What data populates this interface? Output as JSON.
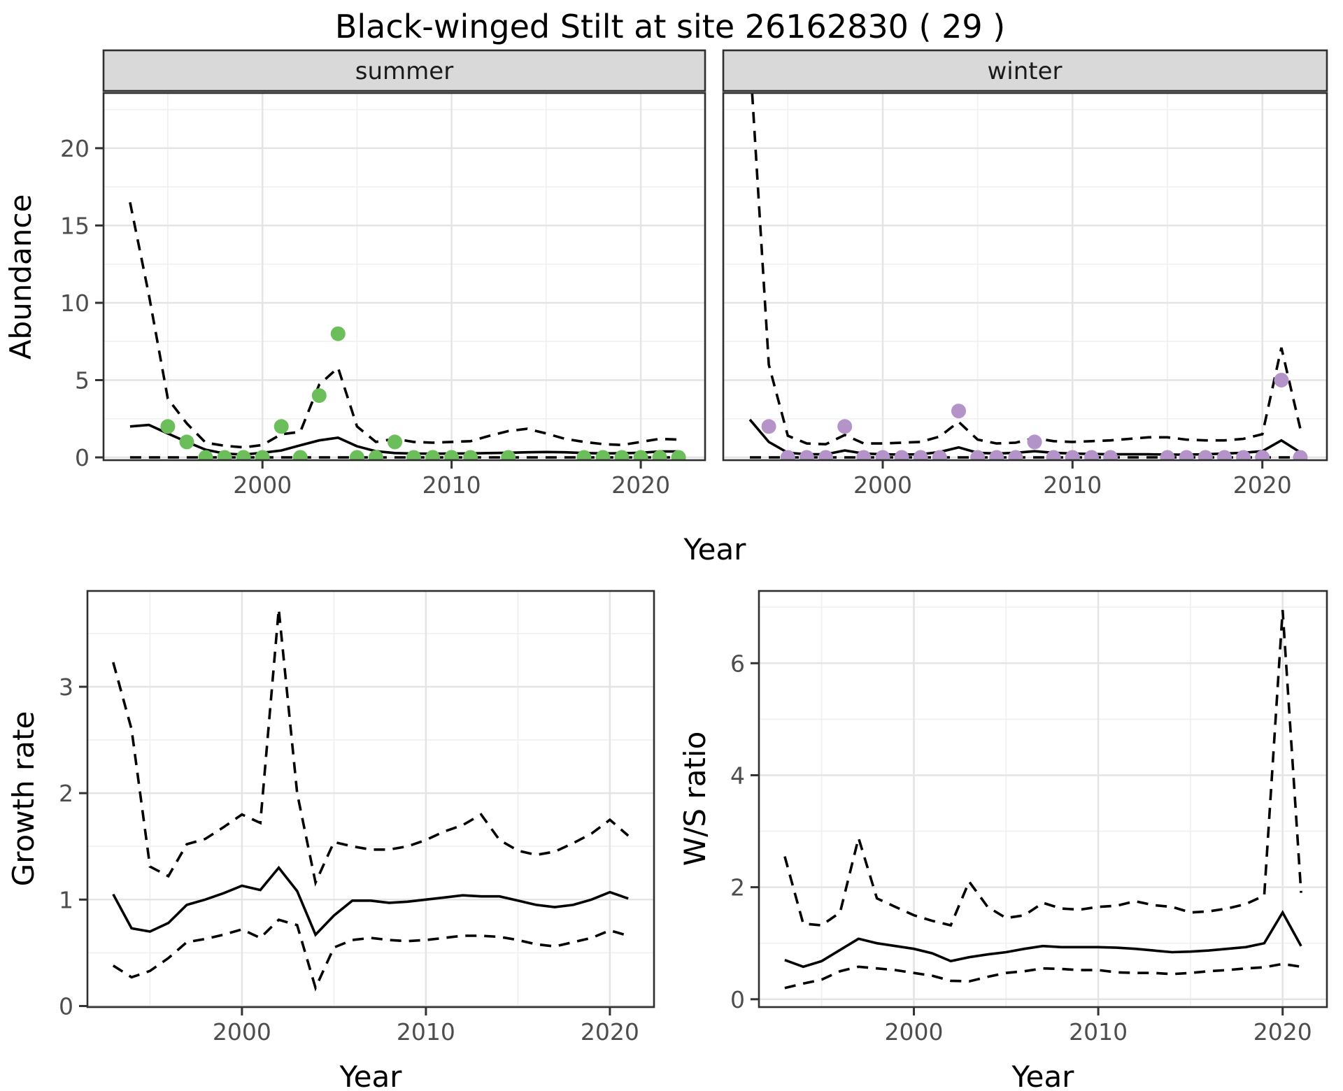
{
  "title": "Black-winged Stilt at site 26162830 ( 29 )",
  "facets": [
    {
      "label": "summer"
    },
    {
      "label": "winter"
    }
  ],
  "axis": {
    "x_label": "Year",
    "abundance_label": "Abundance",
    "growth_label": "Growth rate",
    "ws_label": "W/S ratio"
  },
  "colors": {
    "summer_point": "#6cbe5a",
    "winter_point": "#b493c8",
    "line": "#000000",
    "strip_bg": "#d9d9d9",
    "grid_major": "#e4e4e4",
    "grid_minor": "#f0f0f0",
    "axis_text": "#4d4d4d",
    "panel_border": "#2f2f2f"
  },
  "chart_data": [
    {
      "id": "abundance-summer",
      "type": "line",
      "facet": "summer",
      "xlabel": "Year",
      "ylabel": "Abundance",
      "x": [
        1993,
        1994,
        1995,
        1996,
        1997,
        1998,
        1999,
        2000,
        2001,
        2002,
        2003,
        2004,
        2005,
        2006,
        2007,
        2008,
        2009,
        2010,
        2011,
        2012,
        2013,
        2014,
        2015,
        2016,
        2017,
        2018,
        2019,
        2020,
        2021,
        2022
      ],
      "series": [
        {
          "name": "mean",
          "style": "solid",
          "values": [
            2.0,
            2.1,
            1.55,
            1.0,
            0.5,
            0.25,
            0.18,
            0.3,
            0.45,
            0.78,
            1.1,
            1.27,
            0.72,
            0.4,
            0.28,
            0.25,
            0.24,
            0.25,
            0.26,
            0.28,
            0.3,
            0.33,
            0.35,
            0.33,
            0.28,
            0.26,
            0.27,
            0.3,
            0.38,
            0.38
          ]
        },
        {
          "name": "upper-ci",
          "style": "dashed",
          "values": [
            16.5,
            10.5,
            3.8,
            2.2,
            0.95,
            0.75,
            0.65,
            0.8,
            1.5,
            1.65,
            4.7,
            5.8,
            2.0,
            1.0,
            1.2,
            1.0,
            0.95,
            1.0,
            1.05,
            1.4,
            1.7,
            1.85,
            1.55,
            1.2,
            1.0,
            0.86,
            0.8,
            1.0,
            1.2,
            1.15
          ]
        },
        {
          "name": "lower-ci",
          "style": "dashed",
          "values": [
            0,
            0,
            0,
            0,
            0,
            0,
            0,
            0,
            0,
            0,
            0,
            0,
            0,
            0,
            0,
            0,
            0,
            0,
            0,
            0,
            0,
            0,
            0,
            0,
            0,
            0,
            0,
            0,
            0,
            0
          ]
        }
      ],
      "points": {
        "name": "observed-counts",
        "color_key": "summer_point",
        "xy": [
          [
            1995,
            2
          ],
          [
            1996,
            1
          ],
          [
            1997,
            0
          ],
          [
            1998,
            0
          ],
          [
            1999,
            0
          ],
          [
            2000,
            0
          ],
          [
            2001,
            2
          ],
          [
            2002,
            0
          ],
          [
            2003,
            4
          ],
          [
            2004,
            8
          ],
          [
            2005,
            0
          ],
          [
            2006,
            0
          ],
          [
            2007,
            1
          ],
          [
            2008,
            0
          ],
          [
            2009,
            0
          ],
          [
            2010,
            0
          ],
          [
            2011,
            0
          ],
          [
            2013,
            0
          ],
          [
            2017,
            0
          ],
          [
            2018,
            0
          ],
          [
            2019,
            0
          ],
          [
            2020,
            0
          ],
          [
            2021,
            0
          ],
          [
            2022,
            0
          ]
        ]
      },
      "xlim": [
        1991.6,
        2023.4
      ],
      "ylim": [
        -0.18,
        23.57
      ],
      "xticks": {
        "values": [
          2000,
          2010,
          2020
        ],
        "labels": [
          "2000",
          "2010",
          "2020"
        ]
      },
      "xminor": [
        1995,
        2005,
        2015
      ],
      "yticks": {
        "values": [
          0,
          5,
          10,
          15,
          20
        ],
        "labels": [
          "0",
          "5",
          "10",
          "15",
          "20"
        ]
      },
      "yminor": [
        2.5,
        7.5,
        12.5,
        17.5,
        22.5
      ],
      "y_labels_visible": true
    },
    {
      "id": "abundance-winter",
      "type": "line",
      "facet": "winter",
      "xlabel": "Year",
      "ylabel": "Abundance",
      "x": [
        1993,
        1994,
        1995,
        1996,
        1997,
        1998,
        1999,
        2000,
        2001,
        2002,
        2003,
        2004,
        2005,
        2006,
        2007,
        2008,
        2009,
        2010,
        2011,
        2012,
        2013,
        2014,
        2015,
        2016,
        2017,
        2018,
        2019,
        2020,
        2021,
        2022
      ],
      "series": [
        {
          "name": "mean",
          "style": "solid",
          "values": [
            2.45,
            1.0,
            0.3,
            0.2,
            0.2,
            0.45,
            0.25,
            0.2,
            0.18,
            0.2,
            0.35,
            0.65,
            0.3,
            0.25,
            0.3,
            0.4,
            0.3,
            0.25,
            0.22,
            0.2,
            0.2,
            0.2,
            0.18,
            0.18,
            0.2,
            0.25,
            0.3,
            0.4,
            1.1,
            0.32
          ]
        },
        {
          "name": "upper-ci",
          "style": "dashed",
          "values": [
            26,
            6.0,
            1.4,
            0.9,
            0.85,
            1.45,
            0.9,
            0.9,
            0.95,
            1.0,
            1.35,
            2.3,
            1.15,
            0.9,
            0.95,
            1.25,
            1.05,
            1.0,
            1.05,
            1.1,
            1.2,
            1.3,
            1.3,
            1.15,
            1.1,
            1.1,
            1.2,
            1.5,
            7.1,
            1.85
          ]
        },
        {
          "name": "lower-ci",
          "style": "dashed",
          "values": [
            0,
            0,
            0,
            0,
            0,
            0,
            0,
            0,
            0,
            0,
            0,
            0,
            0,
            0,
            0,
            0,
            0,
            0,
            0,
            0,
            0,
            0,
            0,
            0,
            0,
            0,
            0,
            0,
            0,
            0
          ]
        }
      ],
      "points": {
        "name": "observed-counts",
        "color_key": "winter_point",
        "xy": [
          [
            1994,
            2
          ],
          [
            1995,
            0
          ],
          [
            1996,
            0
          ],
          [
            1997,
            0
          ],
          [
            1998,
            2
          ],
          [
            1999,
            0
          ],
          [
            2000,
            0
          ],
          [
            2001,
            0
          ],
          [
            2002,
            0
          ],
          [
            2003,
            0
          ],
          [
            2004,
            3
          ],
          [
            2005,
            0
          ],
          [
            2006,
            0
          ],
          [
            2007,
            0
          ],
          [
            2008,
            1
          ],
          [
            2009,
            0
          ],
          [
            2010,
            0
          ],
          [
            2011,
            0
          ],
          [
            2012,
            0
          ],
          [
            2015,
            0
          ],
          [
            2016,
            0
          ],
          [
            2017,
            0
          ],
          [
            2018,
            0
          ],
          [
            2019,
            0
          ],
          [
            2020,
            0
          ],
          [
            2021,
            5
          ],
          [
            2022,
            0
          ]
        ]
      },
      "xlim": [
        1991.6,
        2023.4
      ],
      "ylim": [
        -0.18,
        23.57
      ],
      "xticks": {
        "values": [
          2000,
          2010,
          2020
        ],
        "labels": [
          "2000",
          "2010",
          "2020"
        ]
      },
      "xminor": [
        1995,
        2005,
        2015
      ],
      "yticks": {
        "values": [
          0,
          5,
          10,
          15,
          20
        ],
        "labels": [
          "0",
          "5",
          "10",
          "15",
          "20"
        ]
      },
      "yminor": [
        2.5,
        7.5,
        12.5,
        17.5,
        22.5
      ],
      "y_labels_visible": false
    },
    {
      "id": "growth-rate",
      "type": "line",
      "xlabel": "Year",
      "ylabel": "Growth rate",
      "x": [
        1993,
        1994,
        1995,
        1996,
        1997,
        1998,
        1999,
        2000,
        2001,
        2002,
        2003,
        2004,
        2005,
        2006,
        2007,
        2008,
        2009,
        2010,
        2011,
        2012,
        2013,
        2014,
        2015,
        2016,
        2017,
        2018,
        2019,
        2020,
        2021
      ],
      "series": [
        {
          "name": "mean",
          "style": "solid",
          "values": [
            1.05,
            0.73,
            0.7,
            0.78,
            0.95,
            1.0,
            1.06,
            1.13,
            1.09,
            1.3,
            1.08,
            0.67,
            0.85,
            0.99,
            0.99,
            0.97,
            0.98,
            1.0,
            1.02,
            1.04,
            1.03,
            1.03,
            0.99,
            0.95,
            0.93,
            0.95,
            1.0,
            1.07,
            1.01
          ]
        },
        {
          "name": "upper-ci",
          "style": "dashed",
          "values": [
            3.23,
            2.6,
            1.31,
            1.22,
            1.52,
            1.57,
            1.68,
            1.8,
            1.72,
            3.73,
            2.0,
            1.16,
            1.54,
            1.5,
            1.47,
            1.47,
            1.5,
            1.56,
            1.64,
            1.7,
            1.8,
            1.56,
            1.46,
            1.42,
            1.45,
            1.53,
            1.62,
            1.75,
            1.6
          ]
        },
        {
          "name": "lower-ci",
          "style": "dashed",
          "values": [
            0.38,
            0.27,
            0.33,
            0.45,
            0.6,
            0.63,
            0.67,
            0.72,
            0.64,
            0.81,
            0.76,
            0.17,
            0.55,
            0.62,
            0.64,
            0.62,
            0.61,
            0.62,
            0.64,
            0.66,
            0.66,
            0.65,
            0.62,
            0.58,
            0.56,
            0.6,
            0.64,
            0.71,
            0.66
          ]
        }
      ],
      "xlim": [
        1991.6,
        2022.4
      ],
      "ylim": [
        -0.01,
        3.9
      ],
      "xticks": {
        "values": [
          2000,
          2010,
          2020
        ],
        "labels": [
          "2000",
          "2010",
          "2020"
        ]
      },
      "xminor": [
        1995,
        2005,
        2015
      ],
      "yticks": {
        "values": [
          0,
          1,
          2,
          3
        ],
        "labels": [
          "0",
          "1",
          "2",
          "3"
        ]
      },
      "yminor": [
        0.5,
        1.5,
        2.5,
        3.5
      ],
      "y_labels_visible": true
    },
    {
      "id": "ws-ratio",
      "type": "line",
      "xlabel": "Year",
      "ylabel": "W/S ratio",
      "x": [
        1993,
        1994,
        1995,
        1996,
        1997,
        1998,
        1999,
        2000,
        2001,
        2002,
        2003,
        2004,
        2005,
        2006,
        2007,
        2008,
        2009,
        2010,
        2011,
        2012,
        2013,
        2014,
        2015,
        2016,
        2017,
        2018,
        2019,
        2020,
        2021
      ],
      "series": [
        {
          "name": "mean",
          "style": "solid",
          "values": [
            0.7,
            0.58,
            0.68,
            0.88,
            1.08,
            1.0,
            0.95,
            0.9,
            0.82,
            0.68,
            0.75,
            0.8,
            0.84,
            0.9,
            0.95,
            0.93,
            0.93,
            0.93,
            0.92,
            0.9,
            0.87,
            0.84,
            0.85,
            0.87,
            0.9,
            0.93,
            1.0,
            1.55,
            0.95
          ]
        },
        {
          "name": "upper-ci",
          "style": "dashed",
          "values": [
            2.55,
            1.35,
            1.32,
            1.55,
            2.88,
            1.8,
            1.65,
            1.5,
            1.4,
            1.32,
            2.1,
            1.65,
            1.45,
            1.5,
            1.72,
            1.62,
            1.6,
            1.65,
            1.67,
            1.75,
            1.68,
            1.65,
            1.55,
            1.57,
            1.62,
            1.7,
            1.85,
            6.95,
            1.9
          ]
        },
        {
          "name": "lower-ci",
          "style": "dashed",
          "values": [
            0.2,
            0.28,
            0.35,
            0.5,
            0.58,
            0.55,
            0.52,
            0.47,
            0.42,
            0.33,
            0.32,
            0.4,
            0.47,
            0.5,
            0.55,
            0.54,
            0.52,
            0.52,
            0.48,
            0.47,
            0.47,
            0.45,
            0.47,
            0.5,
            0.52,
            0.55,
            0.57,
            0.63,
            0.58
          ]
        }
      ],
      "xlim": [
        1991.6,
        2022.4
      ],
      "ylim": [
        -0.14,
        7.29
      ],
      "xticks": {
        "values": [
          2000,
          2010,
          2020
        ],
        "labels": [
          "2000",
          "2010",
          "2020"
        ]
      },
      "xminor": [
        1995,
        2005,
        2015
      ],
      "yticks": {
        "values": [
          0,
          2,
          4,
          6
        ],
        "labels": [
          "0",
          "2",
          "4",
          "6"
        ]
      },
      "yminor": [
        1,
        3,
        5,
        7
      ],
      "y_labels_visible": true
    }
  ]
}
